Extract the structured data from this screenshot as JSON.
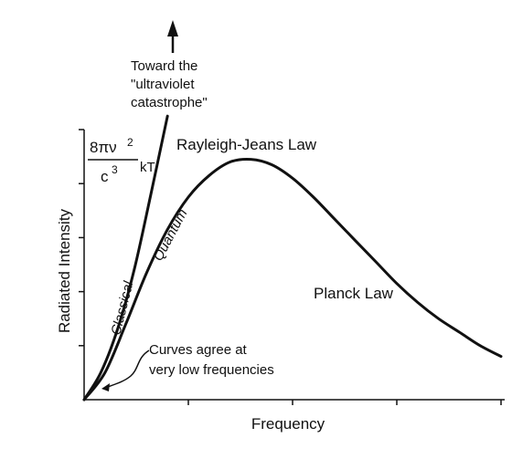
{
  "chart_data": {
    "type": "line",
    "title": "",
    "xlabel": "Frequency",
    "ylabel": "Radiated Intensity",
    "xlim": [
      0,
      1
    ],
    "ylim": [
      0,
      1
    ],
    "grid": false,
    "legend": "none",
    "x_ticks": [
      0.25,
      0.5,
      0.75,
      1.0
    ],
    "y_ticks": [
      0.2,
      0.4,
      0.6,
      0.8,
      1.0
    ],
    "series": [
      {
        "name": "Classical",
        "color": "#111111",
        "x": [
          0,
          0.04,
          0.08,
          0.12,
          0.16,
          0.2
        ],
        "y": [
          0,
          0.1,
          0.26,
          0.48,
          0.76,
          1.05
        ]
      },
      {
        "name": "Quantum",
        "color": "#111111",
        "x": [
          0,
          0.05,
          0.1,
          0.15,
          0.2,
          0.25,
          0.3,
          0.35,
          0.4,
          0.45,
          0.5,
          0.55,
          0.6,
          0.65,
          0.7,
          0.75,
          0.8,
          0.85,
          0.9,
          0.95,
          1.0
        ],
        "y": [
          0,
          0.1,
          0.28,
          0.47,
          0.63,
          0.75,
          0.83,
          0.88,
          0.89,
          0.87,
          0.82,
          0.75,
          0.67,
          0.59,
          0.51,
          0.43,
          0.36,
          0.3,
          0.25,
          0.2,
          0.16
        ]
      }
    ],
    "annotations": {
      "uv_line1": "Toward the",
      "uv_line2": "\"ultraviolet",
      "uv_line3": "catastrophe\"",
      "rayleigh_jeans": "Rayleigh-Jeans Law",
      "planck": "Planck Law",
      "classical": "Classical",
      "quantum": "Quantum",
      "agree_line1": "Curves agree at",
      "agree_line2": "very low frequencies",
      "formula_num": "8πν",
      "formula_exp": "2",
      "formula_den": "c",
      "formula_den_exp": "3",
      "formula_kt": "kT"
    }
  }
}
